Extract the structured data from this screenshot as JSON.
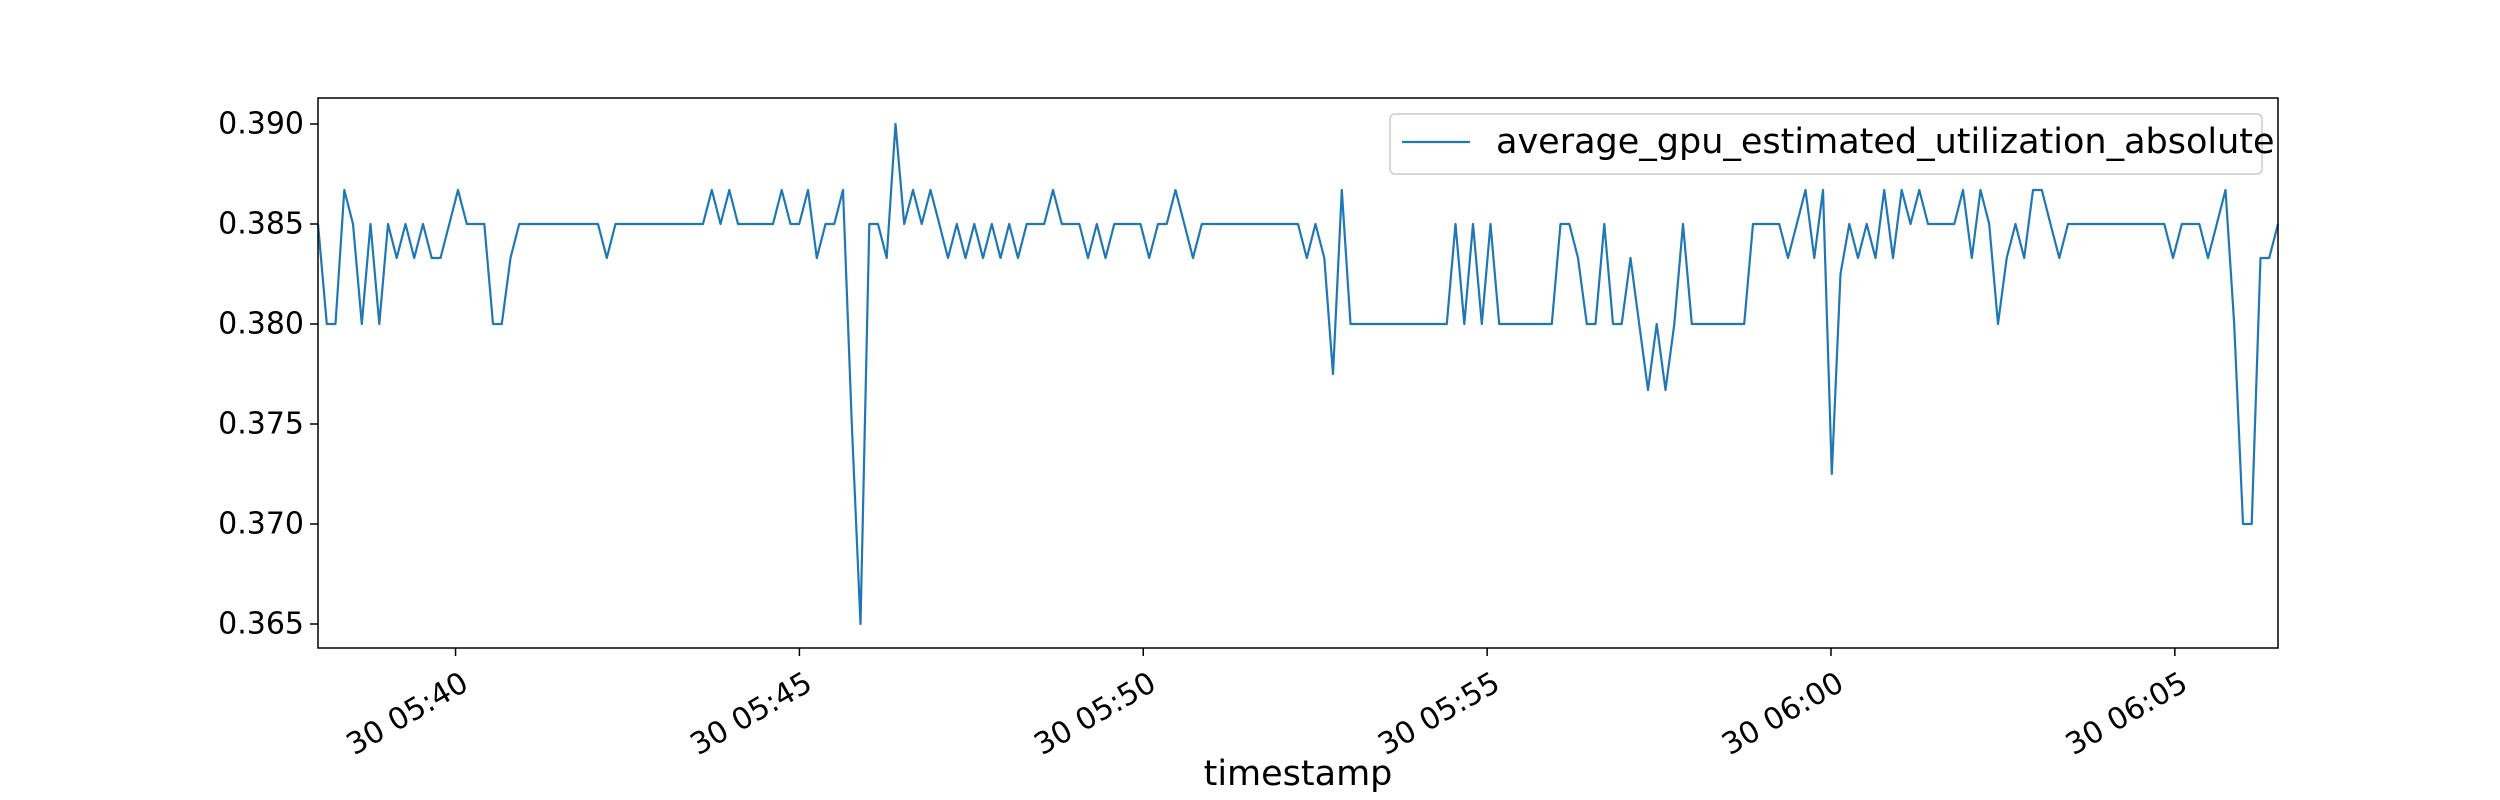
{
  "chart_data": {
    "type": "line",
    "title": "",
    "xlabel": "timestamp",
    "ylabel": "",
    "x_start": "05:38",
    "x_end": "06:06.5",
    "xlim": [
      "05:38",
      "06:06.5"
    ],
    "ylim": [
      0.3638,
      0.3913
    ],
    "grid": false,
    "legend_position": "top-right",
    "x_ticks": [
      {
        "t": "05:40",
        "label": "30 05:40"
      },
      {
        "t": "05:45",
        "label": "30 05:45"
      },
      {
        "t": "05:50",
        "label": "30 05:50"
      },
      {
        "t": "05:55",
        "label": "30 05:55"
      },
      {
        "t": "06:00",
        "label": "30 06:00"
      },
      {
        "t": "06:05",
        "label": "30 06:05"
      }
    ],
    "y_ticks": [
      {
        "value": 0.365,
        "label": "0.365"
      },
      {
        "value": 0.37,
        "label": "0.370"
      },
      {
        "value": 0.375,
        "label": "0.375"
      },
      {
        "value": 0.38,
        "label": "0.380"
      },
      {
        "value": 0.385,
        "label": "0.385"
      },
      {
        "value": 0.39,
        "label": "0.390"
      }
    ],
    "series": [
      {
        "name": "average_gpu_estimated_utilization_absolute",
        "color": "#1f77b4",
        "values": [
          0.385,
          0.38,
          0.38,
          0.3867,
          0.385,
          0.38,
          0.385,
          0.38,
          0.385,
          0.3833,
          0.385,
          0.3833,
          0.385,
          0.3833,
          0.3833,
          0.385,
          0.3867,
          0.385,
          0.385,
          0.385,
          0.38,
          0.38,
          0.3833,
          0.385,
          0.385,
          0.385,
          0.385,
          0.385,
          0.385,
          0.385,
          0.385,
          0.385,
          0.385,
          0.3833,
          0.385,
          0.385,
          0.385,
          0.385,
          0.385,
          0.385,
          0.385,
          0.385,
          0.385,
          0.385,
          0.385,
          0.3867,
          0.385,
          0.3867,
          0.385,
          0.385,
          0.385,
          0.385,
          0.385,
          0.3867,
          0.385,
          0.385,
          0.3867,
          0.3833,
          0.385,
          0.385,
          0.3867,
          0.375,
          0.365,
          0.385,
          0.385,
          0.3833,
          0.39,
          0.385,
          0.3867,
          0.385,
          0.3867,
          0.385,
          0.3833,
          0.385,
          0.3833,
          0.385,
          0.3833,
          0.385,
          0.3833,
          0.385,
          0.3833,
          0.385,
          0.385,
          0.385,
          0.3867,
          0.385,
          0.385,
          0.385,
          0.3833,
          0.385,
          0.3833,
          0.385,
          0.385,
          0.385,
          0.385,
          0.3833,
          0.385,
          0.385,
          0.3867,
          0.385,
          0.3833,
          0.385,
          0.385,
          0.385,
          0.385,
          0.385,
          0.385,
          0.385,
          0.385,
          0.385,
          0.385,
          0.385,
          0.385,
          0.3833,
          0.385,
          0.3833,
          0.3775,
          0.3867,
          0.38,
          0.38,
          0.38,
          0.38,
          0.38,
          0.38,
          0.38,
          0.38,
          0.38,
          0.38,
          0.38,
          0.38,
          0.385,
          0.38,
          0.385,
          0.38,
          0.385,
          0.38,
          0.38,
          0.38,
          0.38,
          0.38,
          0.38,
          0.38,
          0.385,
          0.385,
          0.3833,
          0.38,
          0.38,
          0.385,
          0.38,
          0.38,
          0.3833,
          0.38,
          0.3767,
          0.38,
          0.3767,
          0.38,
          0.385,
          0.38,
          0.38,
          0.38,
          0.38,
          0.38,
          0.38,
          0.38,
          0.385,
          0.385,
          0.385,
          0.385,
          0.3833,
          0.385,
          0.3867,
          0.3833,
          0.3867,
          0.3725,
          0.3825,
          0.385,
          0.3833,
          0.385,
          0.3833,
          0.3867,
          0.3833,
          0.3867,
          0.385,
          0.3867,
          0.385,
          0.385,
          0.385,
          0.385,
          0.3867,
          0.3833,
          0.3867,
          0.385,
          0.38,
          0.3833,
          0.385,
          0.3833,
          0.3867,
          0.3867,
          0.385,
          0.3833,
          0.385,
          0.385,
          0.385,
          0.385,
          0.385,
          0.385,
          0.385,
          0.385,
          0.385,
          0.385,
          0.385,
          0.385,
          0.3833,
          0.385,
          0.385,
          0.385,
          0.3833,
          0.385,
          0.3867,
          0.38,
          0.37,
          0.37,
          0.3833,
          0.3833,
          0.385
        ]
      }
    ]
  }
}
